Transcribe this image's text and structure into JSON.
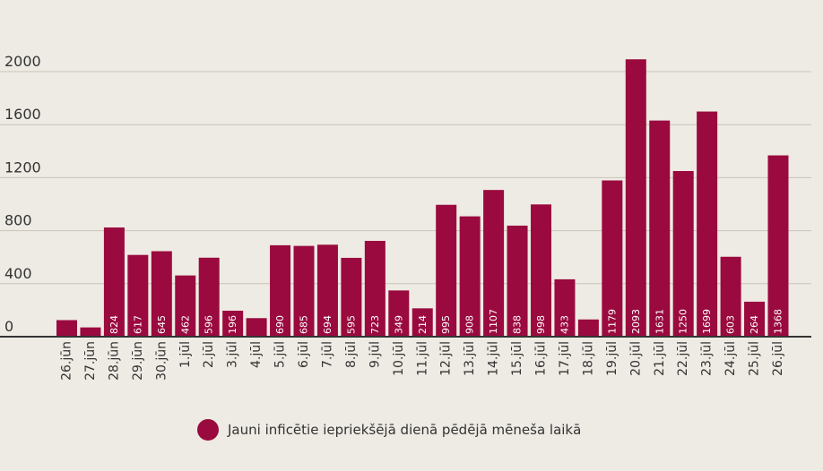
{
  "chart_data": {
    "type": "bar",
    "title": "",
    "xlabel": "",
    "ylabel": "",
    "ylim": [
      0,
      2200
    ],
    "yticks": [
      0,
      400,
      800,
      1200,
      1600,
      2000
    ],
    "grid": true,
    "legend_position": "bottom-center",
    "bar_color": "#9a0a3e",
    "categories": [
      "26.jūn",
      "27.jūn",
      "28.jūn",
      "29.jūn",
      "30.jūn",
      "1.jūl",
      "2.jūl",
      "3.jūl",
      "4.jūl",
      "5.jūl",
      "6.jūl",
      "7.jūl",
      "8.jūl",
      "9.jūl",
      "10.jūl",
      "11.jūl",
      "12.jūl",
      "13.jūl",
      "14.jūl",
      "15.jūl",
      "16.jūl",
      "17.jūl",
      "18.jūl",
      "19.jūl",
      "20.jūl",
      "21.jūl",
      "22.jūl",
      "23.jūl",
      "24.jūl",
      "25.jūl",
      "26.jūl"
    ],
    "series": [
      {
        "name": "Jauni inficētie iepriekšējā dienā pēdējā mēneša laikā",
        "values": [
          125,
          70,
          824,
          617,
          645,
          462,
          596,
          196,
          140,
          690,
          685,
          694,
          595,
          723,
          349,
          214,
          995,
          908,
          1107,
          838,
          998,
          433,
          130,
          1179,
          2093,
          1631,
          1250,
          1699,
          603,
          264,
          1368
        ],
        "data_labels": [
          "",
          "",
          "824",
          "617",
          "645",
          "462",
          "596",
          "196",
          "",
          "690",
          "685",
          "694",
          "595",
          "723",
          "349",
          "214",
          "995",
          "908",
          "1107",
          "838",
          "998",
          "433",
          "",
          "1179",
          "2093",
          "1631",
          "1250",
          "1699",
          "603",
          "264",
          "1368"
        ]
      }
    ]
  },
  "legend": {
    "label": "Jauni inficētie iepriekšējā dienā pēdējā mēneša laikā",
    "color": "#9a0a3e"
  }
}
